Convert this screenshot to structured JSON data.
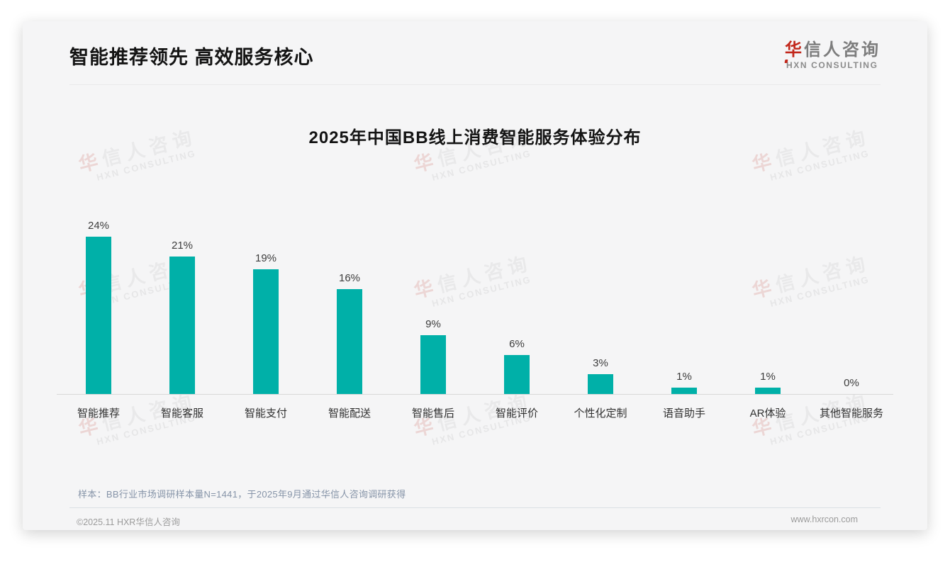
{
  "header": {
    "title": "智能推荐领先 高效服务核心"
  },
  "logo": {
    "cn_first": "华",
    "cn_rest": "信人咨询",
    "en": "HXN CONSULTING"
  },
  "watermark": {
    "line1_first": "华",
    "line1_rest": "信人咨询",
    "line2": "HXN CONSULTING"
  },
  "chart_data": {
    "type": "bar",
    "title": "2025年中国BB线上消费智能服务体验分布",
    "categories": [
      "智能推荐",
      "智能客服",
      "智能支付",
      "智能配送",
      "智能售后",
      "智能评价",
      "个性化定制",
      "语音助手",
      "AR体验",
      "其他智能服务"
    ],
    "values": [
      24,
      21,
      19,
      16,
      9,
      6,
      3,
      1,
      1,
      0
    ],
    "data_labels": [
      "24%",
      "21%",
      "19%",
      "16%",
      "9%",
      "6%",
      "3%",
      "1%",
      "1%",
      "0%"
    ],
    "unit": "%",
    "bar_color": "#00b0a8",
    "ylim": [
      0,
      26
    ],
    "grid": false,
    "legend": "none",
    "xlabel": "",
    "ylabel": ""
  },
  "note": {
    "text": "样本：BB行业市场调研样本量N=1441，于2025年9月通过华信人咨询调研获得"
  },
  "footer": {
    "copyright": "©2025.11 HXR华信人咨询",
    "website": "www.hxrcon.com"
  }
}
